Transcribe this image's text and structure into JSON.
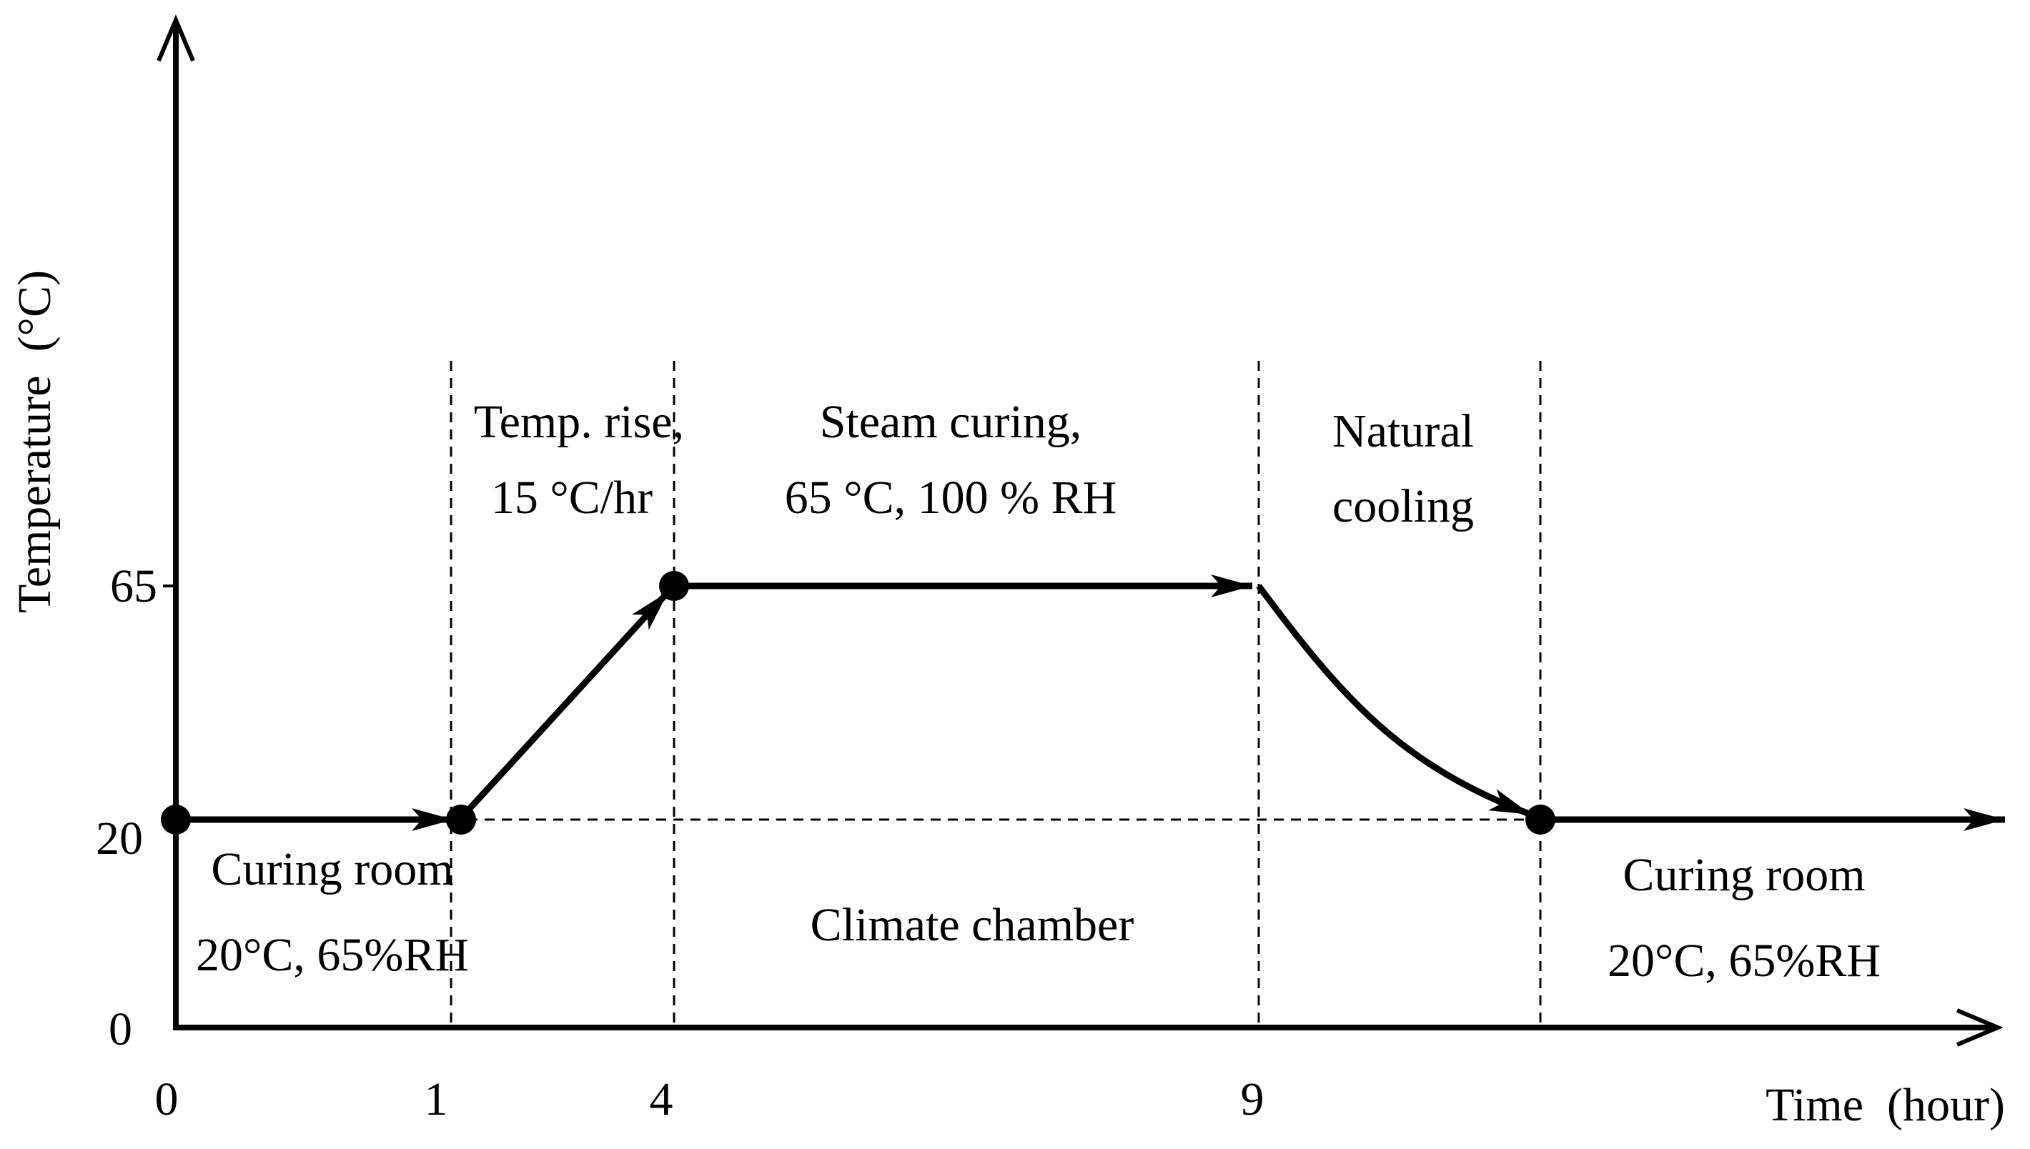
{
  "chart_data": {
    "type": "line",
    "xlabel": "Time  (hour)",
    "ylabel": "Temperature  (°C)",
    "x_ticks": [
      "0",
      "1",
      "4",
      "9"
    ],
    "y_ticks": [
      "0",
      "20",
      "65"
    ],
    "series": [
      {
        "points": [
          {
            "x": 0,
            "y": 20
          },
          {
            "x": 1,
            "y": 20
          },
          {
            "x": 4,
            "y": 65
          },
          {
            "x": 9,
            "y": 65
          },
          {
            "x": 11.5,
            "y": 20
          }
        ]
      }
    ],
    "stages": {
      "curing_room_start": [
        "Curing room",
        "20°C, 65%RH"
      ],
      "temp_rise": [
        "Temp. rise,",
        "15 °C/hr"
      ],
      "steam_curing": [
        "Steam curing,",
        "65 °C, 100 % RH"
      ],
      "natural_cooling": [
        "Natural",
        "cooling"
      ],
      "climate_chamber": "Climate chamber",
      "curing_room_end": [
        "Curing room",
        "20°C, 65%RH"
      ]
    }
  }
}
